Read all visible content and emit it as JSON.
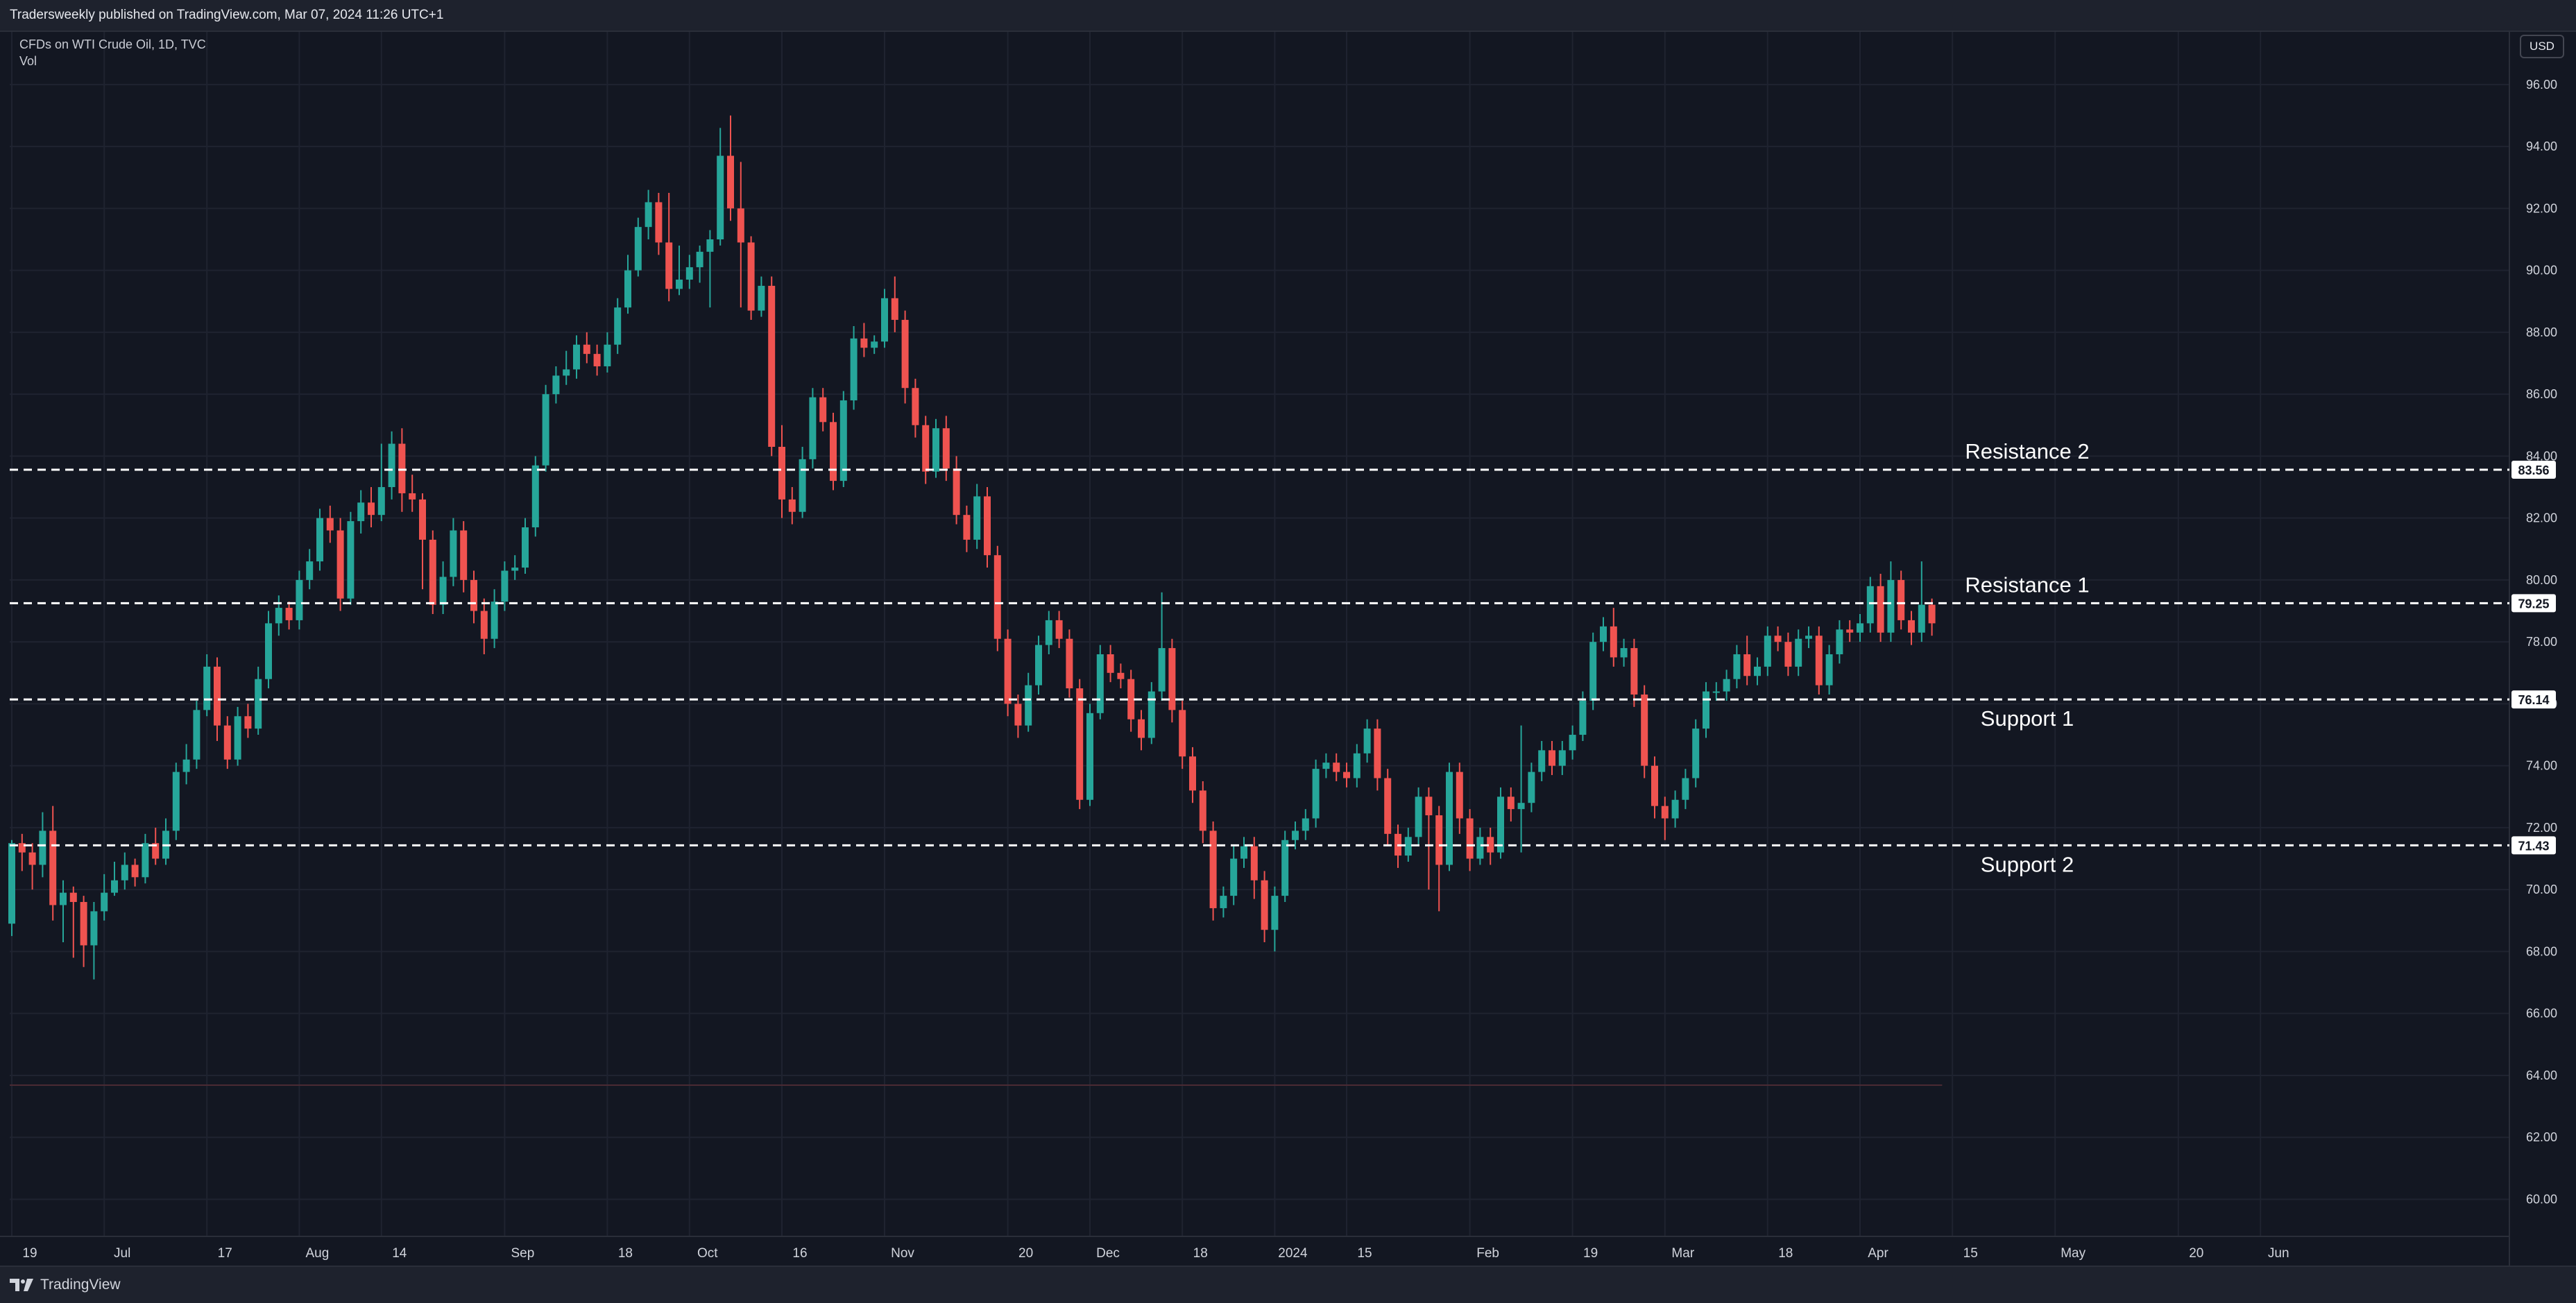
{
  "header": {
    "published_text": "Tradersweekly published on TradingView.com, Mar 07, 2024 11:26 UTC+1"
  },
  "legend": {
    "symbol_text": "CFDs on WTI Crude Oil, 1D, TVC",
    "vol_text": "Vol"
  },
  "currency_label": "USD",
  "footer": {
    "brand_label": "TradingView"
  },
  "colors": {
    "up": "#26a69a",
    "down": "#ef5350",
    "background": "#131722",
    "grid": "#1f2330",
    "level_line": "#ffffff"
  },
  "chart_data": {
    "type": "candlestick",
    "title": "",
    "xlabel": "",
    "ylabel": "",
    "ylim": [
      58.8,
      97.7
    ],
    "y_ticks": [
      "96.00",
      "94.00",
      "92.00",
      "90.00",
      "88.00",
      "86.00",
      "84.00",
      "82.00",
      "80.00",
      "78.00",
      "76.00",
      "74.00",
      "72.00",
      "70.00",
      "68.00",
      "66.00",
      "64.00",
      "62.00",
      "60.00"
    ],
    "x_ticks": [
      {
        "label": "19",
        "x": 0
      },
      {
        "label": "Jul",
        "x": 9
      },
      {
        "label": "17",
        "x": 19
      },
      {
        "label": "Aug",
        "x": 28
      },
      {
        "label": "14",
        "x": 36
      },
      {
        "label": "Sep",
        "x": 48
      },
      {
        "label": "18",
        "x": 58
      },
      {
        "label": "Oct",
        "x": 66
      },
      {
        "label": "16",
        "x": 75
      },
      {
        "label": "Nov",
        "x": 85
      },
      {
        "label": "20",
        "x": 97
      },
      {
        "label": "Dec",
        "x": 105
      },
      {
        "label": "18",
        "x": 114
      },
      {
        "label": "2024",
        "x": 123
      },
      {
        "label": "15",
        "x": 130
      },
      {
        "label": "Feb",
        "x": 142
      },
      {
        "label": "19",
        "x": 152
      },
      {
        "label": "Mar",
        "x": 161
      },
      {
        "label": "18",
        "x": 171
      },
      {
        "label": "Apr",
        "x": 180
      },
      {
        "label": "15",
        "x": 189
      },
      {
        "label": "May",
        "x": 199
      },
      {
        "label": "20",
        "x": 211
      },
      {
        "label": "Jun",
        "x": 219
      }
    ],
    "grid": true,
    "levels": [
      {
        "name": "Resistance 2",
        "value": 83.56,
        "value_label": "83.56"
      },
      {
        "name": "Resistance 1",
        "value": 79.25,
        "value_label": "79.25"
      },
      {
        "name": "Support 1",
        "value": 76.14,
        "value_label": "76.14"
      },
      {
        "name": "Support 2",
        "value": 71.43,
        "value_label": "71.43"
      }
    ],
    "candles": [
      [
        68.9,
        71.5,
        68.5,
        71.6
      ],
      [
        71.5,
        71.2,
        70.6,
        71.8
      ],
      [
        71.2,
        70.8,
        70.0,
        71.5
      ],
      [
        70.8,
        71.9,
        70.4,
        72.5
      ],
      [
        71.9,
        69.5,
        69.0,
        72.7
      ],
      [
        69.5,
        69.9,
        68.3,
        70.3
      ],
      [
        69.9,
        69.6,
        67.8,
        70.1
      ],
      [
        69.6,
        68.2,
        67.5,
        69.8
      ],
      [
        68.2,
        69.3,
        67.1,
        69.6
      ],
      [
        69.3,
        69.9,
        69.0,
        70.5
      ],
      [
        69.9,
        70.3,
        69.8,
        70.9
      ],
      [
        70.3,
        70.8,
        70.0,
        71.2
      ],
      [
        70.8,
        70.4,
        70.1,
        71.0
      ],
      [
        70.4,
        71.5,
        70.2,
        71.8
      ],
      [
        71.5,
        71.0,
        70.8,
        72.0
      ],
      [
        71.0,
        71.9,
        70.8,
        72.3
      ],
      [
        71.9,
        73.8,
        71.6,
        74.1
      ],
      [
        73.8,
        74.2,
        73.4,
        74.7
      ],
      [
        74.2,
        75.8,
        73.9,
        76.1
      ],
      [
        75.8,
        77.2,
        75.6,
        77.6
      ],
      [
        77.2,
        75.3,
        74.8,
        77.5
      ],
      [
        75.3,
        74.2,
        73.9,
        75.6
      ],
      [
        74.2,
        75.6,
        74.0,
        75.9
      ],
      [
        75.6,
        75.2,
        74.9,
        76.0
      ],
      [
        75.2,
        76.8,
        75.0,
        77.2
      ],
      [
        76.8,
        78.6,
        76.5,
        79.0
      ],
      [
        78.6,
        79.1,
        78.2,
        79.5
      ],
      [
        79.1,
        78.7,
        78.4,
        79.3
      ],
      [
        78.7,
        80.0,
        78.4,
        80.3
      ],
      [
        80.0,
        80.6,
        79.7,
        81.0
      ],
      [
        80.6,
        82.0,
        80.3,
        82.3
      ],
      [
        82.0,
        81.6,
        81.2,
        82.4
      ],
      [
        81.6,
        79.4,
        79.0,
        82.0
      ],
      [
        79.4,
        81.9,
        79.2,
        82.2
      ],
      [
        81.9,
        82.5,
        81.5,
        82.9
      ],
      [
        82.5,
        82.1,
        81.7,
        83.0
      ],
      [
        82.1,
        83.0,
        81.9,
        84.4
      ],
      [
        83.0,
        84.4,
        82.6,
        84.8
      ],
      [
        84.4,
        82.8,
        82.2,
        84.9
      ],
      [
        82.8,
        82.6,
        82.2,
        83.4
      ],
      [
        82.6,
        81.3,
        79.7,
        82.8
      ],
      [
        81.3,
        79.2,
        78.9,
        81.6
      ],
      [
        79.2,
        80.1,
        78.9,
        80.6
      ],
      [
        80.1,
        81.6,
        79.8,
        82.0
      ],
      [
        81.6,
        80.0,
        79.6,
        81.9
      ],
      [
        80.0,
        79.0,
        78.6,
        80.3
      ],
      [
        79.0,
        78.1,
        77.6,
        79.4
      ],
      [
        78.1,
        79.3,
        77.8,
        79.7
      ],
      [
        79.3,
        80.3,
        79.0,
        80.6
      ],
      [
        80.3,
        80.4,
        80.0,
        80.8
      ],
      [
        80.4,
        81.7,
        80.2,
        82.0
      ],
      [
        81.7,
        83.7,
        81.4,
        84.0
      ],
      [
        83.7,
        86.0,
        83.5,
        86.3
      ],
      [
        86.0,
        86.6,
        85.7,
        86.9
      ],
      [
        86.6,
        86.8,
        86.3,
        87.4
      ],
      [
        86.8,
        87.6,
        86.5,
        87.9
      ],
      [
        87.6,
        87.3,
        87.0,
        88.0
      ],
      [
        87.3,
        86.9,
        86.6,
        87.6
      ],
      [
        86.9,
        87.6,
        86.7,
        88.0
      ],
      [
        87.6,
        88.8,
        87.3,
        89.1
      ],
      [
        88.8,
        90.0,
        88.6,
        90.5
      ],
      [
        90.0,
        91.4,
        89.8,
        91.7
      ],
      [
        91.4,
        92.2,
        91.0,
        92.6
      ],
      [
        92.2,
        90.9,
        90.5,
        92.5
      ],
      [
        90.9,
        89.4,
        89.0,
        92.5
      ],
      [
        89.4,
        89.7,
        89.2,
        90.8
      ],
      [
        89.7,
        90.1,
        89.4,
        90.5
      ],
      [
        90.1,
        90.6,
        89.6,
        90.8
      ],
      [
        90.6,
        91.0,
        88.8,
        91.3
      ],
      [
        91.0,
        93.7,
        90.8,
        94.6
      ],
      [
        93.7,
        92.0,
        91.6,
        95.0
      ],
      [
        92.0,
        90.9,
        88.8,
        93.5
      ],
      [
        90.9,
        88.7,
        88.4,
        91.1
      ],
      [
        88.7,
        89.5,
        88.5,
        89.8
      ],
      [
        89.5,
        84.3,
        84.0,
        89.8
      ],
      [
        84.3,
        82.6,
        82.0,
        85.0
      ],
      [
        82.6,
        82.2,
        81.8,
        83.0
      ],
      [
        82.2,
        83.9,
        82.0,
        84.3
      ],
      [
        83.9,
        85.9,
        83.6,
        86.2
      ],
      [
        85.9,
        85.1,
        84.8,
        86.2
      ],
      [
        85.1,
        83.2,
        82.9,
        85.4
      ],
      [
        83.2,
        85.8,
        83.0,
        86.1
      ],
      [
        85.8,
        87.8,
        85.5,
        88.2
      ],
      [
        87.8,
        87.5,
        87.2,
        88.3
      ],
      [
        87.5,
        87.7,
        87.3,
        87.9
      ],
      [
        87.7,
        89.1,
        87.5,
        89.4
      ],
      [
        89.1,
        88.4,
        88.0,
        89.8
      ],
      [
        88.4,
        86.2,
        85.7,
        88.7
      ],
      [
        86.2,
        85.0,
        84.6,
        86.5
      ],
      [
        85.0,
        83.5,
        83.1,
        85.3
      ],
      [
        83.5,
        84.9,
        83.3,
        85.2
      ],
      [
        84.9,
        83.6,
        83.2,
        85.3
      ],
      [
        83.6,
        82.1,
        81.8,
        84.0
      ],
      [
        82.1,
        81.3,
        80.9,
        82.4
      ],
      [
        81.3,
        82.7,
        81.0,
        83.1
      ],
      [
        82.7,
        80.8,
        80.4,
        83.0
      ],
      [
        80.8,
        78.1,
        77.7,
        81.1
      ],
      [
        78.1,
        76.0,
        75.6,
        78.4
      ],
      [
        76.0,
        75.3,
        74.9,
        76.3
      ],
      [
        75.3,
        76.6,
        75.1,
        77.0
      ],
      [
        76.6,
        77.9,
        76.3,
        78.2
      ],
      [
        77.9,
        78.7,
        77.6,
        79.0
      ],
      [
        78.7,
        78.1,
        77.8,
        79.0
      ],
      [
        78.1,
        76.5,
        76.2,
        78.4
      ],
      [
        76.5,
        72.9,
        72.6,
        76.8
      ],
      [
        72.9,
        75.7,
        72.7,
        76.0
      ],
      [
        75.7,
        77.6,
        75.5,
        77.9
      ],
      [
        77.6,
        77.0,
        76.7,
        77.9
      ],
      [
        77.0,
        76.8,
        76.5,
        77.3
      ],
      [
        76.8,
        75.5,
        75.1,
        77.1
      ],
      [
        75.5,
        74.9,
        74.5,
        75.8
      ],
      [
        74.9,
        76.4,
        74.7,
        76.7
      ],
      [
        76.4,
        77.8,
        76.1,
        79.6
      ],
      [
        77.8,
        75.8,
        75.4,
        78.1
      ],
      [
        75.8,
        74.3,
        73.9,
        76.1
      ],
      [
        74.3,
        73.2,
        72.8,
        74.6
      ],
      [
        73.2,
        71.9,
        71.5,
        73.5
      ],
      [
        71.9,
        69.4,
        69.0,
        72.2
      ],
      [
        69.4,
        69.8,
        69.1,
        70.1
      ],
      [
        69.8,
        71.0,
        69.5,
        71.4
      ],
      [
        71.0,
        71.4,
        70.7,
        71.7
      ],
      [
        71.4,
        70.3,
        69.7,
        71.7
      ],
      [
        70.3,
        68.7,
        68.3,
        70.6
      ],
      [
        68.7,
        69.8,
        68.0,
        70.1
      ],
      [
        69.8,
        71.6,
        69.6,
        71.9
      ],
      [
        71.6,
        71.9,
        71.3,
        72.2
      ],
      [
        71.9,
        72.3,
        71.6,
        72.6
      ],
      [
        72.3,
        73.9,
        72.0,
        74.2
      ],
      [
        73.9,
        74.1,
        73.6,
        74.4
      ],
      [
        74.1,
        73.8,
        73.5,
        74.4
      ],
      [
        73.8,
        73.6,
        73.3,
        74.1
      ],
      [
        73.6,
        74.4,
        73.3,
        74.7
      ],
      [
        74.4,
        75.2,
        74.1,
        75.5
      ],
      [
        75.2,
        73.6,
        73.2,
        75.5
      ],
      [
        73.6,
        71.8,
        71.4,
        73.9
      ],
      [
        71.8,
        71.1,
        70.7,
        72.1
      ],
      [
        71.1,
        71.7,
        70.9,
        72.0
      ],
      [
        71.7,
        73.0,
        71.4,
        73.3
      ],
      [
        73.0,
        72.4,
        70.0,
        73.3
      ],
      [
        72.4,
        70.8,
        69.3,
        72.7
      ],
      [
        70.8,
        73.8,
        70.6,
        74.1
      ],
      [
        73.8,
        72.3,
        71.8,
        74.1
      ],
      [
        72.3,
        71.0,
        70.6,
        72.6
      ],
      [
        71.0,
        71.7,
        70.8,
        72.0
      ],
      [
        71.7,
        71.2,
        70.8,
        72.0
      ],
      [
        71.2,
        73.0,
        71.0,
        73.3
      ],
      [
        73.0,
        72.6,
        72.2,
        73.3
      ],
      [
        72.6,
        72.8,
        71.2,
        75.3
      ],
      [
        72.8,
        73.8,
        72.5,
        74.1
      ],
      [
        73.8,
        74.5,
        73.5,
        74.8
      ],
      [
        74.5,
        74.0,
        73.7,
        74.8
      ],
      [
        74.0,
        74.5,
        73.7,
        74.8
      ],
      [
        74.5,
        75.0,
        74.2,
        75.3
      ],
      [
        75.0,
        76.1,
        74.8,
        76.4
      ],
      [
        76.1,
        78.0,
        75.8,
        78.3
      ],
      [
        78.0,
        78.5,
        77.7,
        78.8
      ],
      [
        78.5,
        77.5,
        77.2,
        79.1
      ],
      [
        77.5,
        77.8,
        77.2,
        78.1
      ],
      [
        77.8,
        76.3,
        75.9,
        78.1
      ],
      [
        76.3,
        74.0,
        73.6,
        76.6
      ],
      [
        74.0,
        72.7,
        72.3,
        74.3
      ],
      [
        72.7,
        72.3,
        71.6,
        73.0
      ],
      [
        72.3,
        72.9,
        72.0,
        73.2
      ],
      [
        72.9,
        73.6,
        72.6,
        73.9
      ],
      [
        73.6,
        75.2,
        73.3,
        75.5
      ],
      [
        75.2,
        76.4,
        74.9,
        76.7
      ],
      [
        76.4,
        76.4,
        76.1,
        76.7
      ],
      [
        76.4,
        76.8,
        76.1,
        77.1
      ],
      [
        76.8,
        77.6,
        76.5,
        77.9
      ],
      [
        77.6,
        76.9,
        76.6,
        78.2
      ],
      [
        76.9,
        77.2,
        76.6,
        77.5
      ],
      [
        77.2,
        78.2,
        76.9,
        78.5
      ],
      [
        78.2,
        78.0,
        77.7,
        78.5
      ],
      [
        78.0,
        77.2,
        76.9,
        78.3
      ],
      [
        77.2,
        78.1,
        76.9,
        78.4
      ],
      [
        78.1,
        78.2,
        77.8,
        78.5
      ],
      [
        78.2,
        76.6,
        76.3,
        78.5
      ],
      [
        76.6,
        77.6,
        76.3,
        77.9
      ],
      [
        77.6,
        78.4,
        77.3,
        78.7
      ],
      [
        78.4,
        78.3,
        78.0,
        78.7
      ],
      [
        78.3,
        78.6,
        78.0,
        78.9
      ],
      [
        78.6,
        79.8,
        78.3,
        80.1
      ],
      [
        79.8,
        78.3,
        78.0,
        80.2
      ],
      [
        78.3,
        80.0,
        78.0,
        80.6
      ],
      [
        80.0,
        78.7,
        78.4,
        80.3
      ],
      [
        78.7,
        78.3,
        77.9,
        79.0
      ],
      [
        78.3,
        79.2,
        78.0,
        80.6
      ],
      [
        79.2,
        78.6,
        78.2,
        79.4
      ]
    ]
  }
}
